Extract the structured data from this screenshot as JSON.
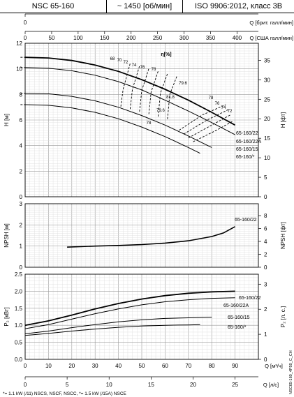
{
  "header": {
    "model": "NSC 65-160",
    "speed": "~ 1450 [об/мин]",
    "standard": "ISO 9906:2012, класс 3B"
  },
  "footnote": "*= 1.1 kW (/11) NSCS, NSCF, NSCC, *= 1.5 kW (/15A) NSCE",
  "side_code": "NSC65-160_4P50_C_CH",
  "top_axes": {
    "imp_label": "Q [брит. галл/мин]",
    "imp_ticks": [
      "0",
      "50",
      "100",
      "150",
      "200",
      "250",
      "300"
    ],
    "us_label": "Q [США галл/мин]",
    "us_ticks": [
      "0",
      "50",
      "100",
      "150",
      "200",
      "250",
      "300",
      "350",
      "400"
    ]
  },
  "bottom_axes": {
    "m3h_label": "Q [м³/ч]",
    "m3h_ticks": [
      "0",
      "10",
      "20",
      "30",
      "40",
      "50",
      "60",
      "70",
      "80",
      "90"
    ],
    "ls_label": "Q [л/с]",
    "ls_ticks": [
      "0",
      "5",
      "10",
      "15",
      "20",
      "25"
    ]
  },
  "chart_data": [
    {
      "type": "line",
      "panel": "head",
      "xlabel": "Q [м³/ч]",
      "ylabel": "H [м]",
      "ylabel_right": "H [фт]",
      "xlim": [
        0,
        100
      ],
      "ylim": [
        0,
        12
      ],
      "yticks": [
        0,
        2,
        4,
        6,
        8,
        10,
        12
      ],
      "yticks_right": [
        0,
        5,
        10,
        15,
        20,
        25,
        30,
        35
      ],
      "series": [
        {
          "name": "65-160/22",
          "x": [
            0,
            10,
            20,
            30,
            40,
            50,
            60,
            70,
            80,
            90
          ],
          "y": [
            10.9,
            10.85,
            10.65,
            10.3,
            9.8,
            9.15,
            8.4,
            7.55,
            6.6,
            5.6
          ]
        },
        {
          "name": "65-160/22A",
          "x": [
            0,
            10,
            20,
            30,
            40,
            50,
            60,
            70,
            80,
            90
          ],
          "y": [
            10.1,
            10.05,
            9.85,
            9.5,
            9.0,
            8.35,
            7.55,
            6.7,
            5.8,
            4.85
          ]
        },
        {
          "name": "65-160/15",
          "x": [
            0,
            10,
            20,
            30,
            40,
            50,
            60,
            70,
            75,
            80
          ],
          "y": [
            8.1,
            8.05,
            7.85,
            7.5,
            7.0,
            6.35,
            5.6,
            4.75,
            4.3,
            3.85
          ]
        },
        {
          "name": "65-160/*",
          "x": [
            0,
            10,
            20,
            30,
            40,
            50,
            60,
            70,
            75
          ],
          "y": [
            7.2,
            7.15,
            6.95,
            6.6,
            6.1,
            5.45,
            4.7,
            3.85,
            3.4
          ]
        }
      ],
      "efficiency_labels": [
        "68",
        "70",
        "72",
        "74",
        "76",
        "78",
        "79.6",
        "81.8",
        "79.6",
        "78",
        "78",
        "76",
        "74",
        "72"
      ],
      "eta_marker": "η[%]"
    },
    {
      "type": "line",
      "panel": "npsh",
      "xlabel": "Q [м³/ч]",
      "ylabel": "NPSH [м]",
      "ylabel_right": "NPSH [фт]",
      "xlim": [
        0,
        100
      ],
      "ylim": [
        0,
        3
      ],
      "yticks": [
        0,
        1,
        2,
        3
      ],
      "yticks_right": [
        0,
        2,
        4,
        6,
        8
      ],
      "series": [
        {
          "name": "65-160/22",
          "x": [
            18,
            30,
            40,
            50,
            60,
            70,
            80,
            85,
            90
          ],
          "y": [
            0.95,
            1.0,
            1.03,
            1.07,
            1.14,
            1.25,
            1.45,
            1.62,
            1.92
          ]
        }
      ]
    },
    {
      "type": "line",
      "panel": "power",
      "xlabel": "Q [м³/ч]",
      "ylabel": "P₂ [кВт]",
      "ylabel_right": "P₂ [л. с.]",
      "xlim": [
        0,
        100
      ],
      "ylim": [
        0,
        2.5
      ],
      "yticks": [
        0.0,
        0.5,
        1.0,
        1.5,
        2.0,
        2.5
      ],
      "yticks_right": [
        0,
        1,
        2,
        3
      ],
      "series": [
        {
          "name": "65-160/22",
          "x": [
            0,
            10,
            20,
            30,
            40,
            50,
            60,
            70,
            80,
            90
          ],
          "y": [
            1.0,
            1.13,
            1.3,
            1.48,
            1.64,
            1.77,
            1.87,
            1.94,
            1.98,
            2.0
          ]
        },
        {
          "name": "65-160/22A",
          "x": [
            0,
            10,
            20,
            30,
            40,
            50,
            60,
            70,
            80,
            90
          ],
          "y": [
            0.9,
            1.02,
            1.18,
            1.34,
            1.48,
            1.6,
            1.69,
            1.75,
            1.79,
            1.81
          ]
        },
        {
          "name": "65-160/15",
          "x": [
            0,
            10,
            20,
            30,
            40,
            50,
            60,
            70,
            80
          ],
          "y": [
            0.75,
            0.83,
            0.93,
            1.02,
            1.1,
            1.16,
            1.2,
            1.22,
            1.24
          ]
        },
        {
          "name": "65-160/*",
          "x": [
            0,
            10,
            20,
            30,
            40,
            50,
            60,
            70,
            75
          ],
          "y": [
            0.7,
            0.76,
            0.83,
            0.89,
            0.94,
            0.98,
            1.0,
            1.01,
            1.02
          ]
        }
      ]
    }
  ]
}
